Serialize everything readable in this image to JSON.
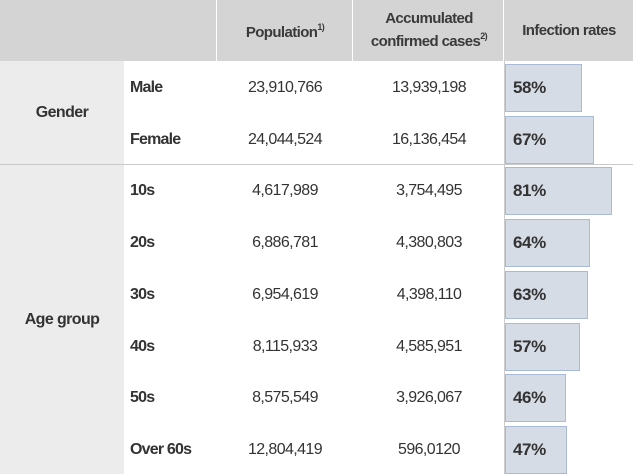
{
  "headers": {
    "group": "",
    "category": "",
    "population": "Population",
    "population_note": "1)",
    "cases_line1": "Accumulated",
    "cases_line2": "confirmed cases",
    "cases_note": "2)",
    "rates": "Infection rates"
  },
  "groups": {
    "gender": "Gender",
    "age": "Age group"
  },
  "chart_data": {
    "type": "table",
    "columns": [
      "",
      "",
      "Population 1)",
      "Accumulated confirmed cases 2)",
      "Infection rates"
    ],
    "rows": [
      {
        "group": "Gender",
        "label": "Male",
        "population": "23,910,766",
        "cases": "13,939,198",
        "rate": "58%",
        "rate_value": 58
      },
      {
        "group": "Gender",
        "label": "Female",
        "population": "24,044,524",
        "cases": "16,136,454",
        "rate": "67%",
        "rate_value": 67
      },
      {
        "group": "Age group",
        "label": "10s",
        "population": "4,617,989",
        "cases": "3,754,495",
        "rate": "81%",
        "rate_value": 81
      },
      {
        "group": "Age group",
        "label": "20s",
        "population": "6,886,781",
        "cases": "4,380,803",
        "rate": "64%",
        "rate_value": 64
      },
      {
        "group": "Age group",
        "label": "30s",
        "population": "6,954,619",
        "cases": "4,398,110",
        "rate": "63%",
        "rate_value": 63
      },
      {
        "group": "Age group",
        "label": "40s",
        "population": "8,115,933",
        "cases": "4,585,951",
        "rate": "57%",
        "rate_value": 57
      },
      {
        "group": "Age group",
        "label": "50s",
        "population": "8,575,549",
        "cases": "3,926,067",
        "rate": "46%",
        "rate_value": 46
      },
      {
        "group": "Age group",
        "label": "Over 60s",
        "population": "12,804,419",
        "cases": "596,0120",
        "rate": "47%",
        "rate_value": 47
      }
    ],
    "bar_max": 81,
    "colors": {
      "header_bg": "#d4d4d4",
      "group_bg": "#ececec",
      "bar_fill": "#d6dce6",
      "bar_border": "#a9bad6"
    }
  }
}
